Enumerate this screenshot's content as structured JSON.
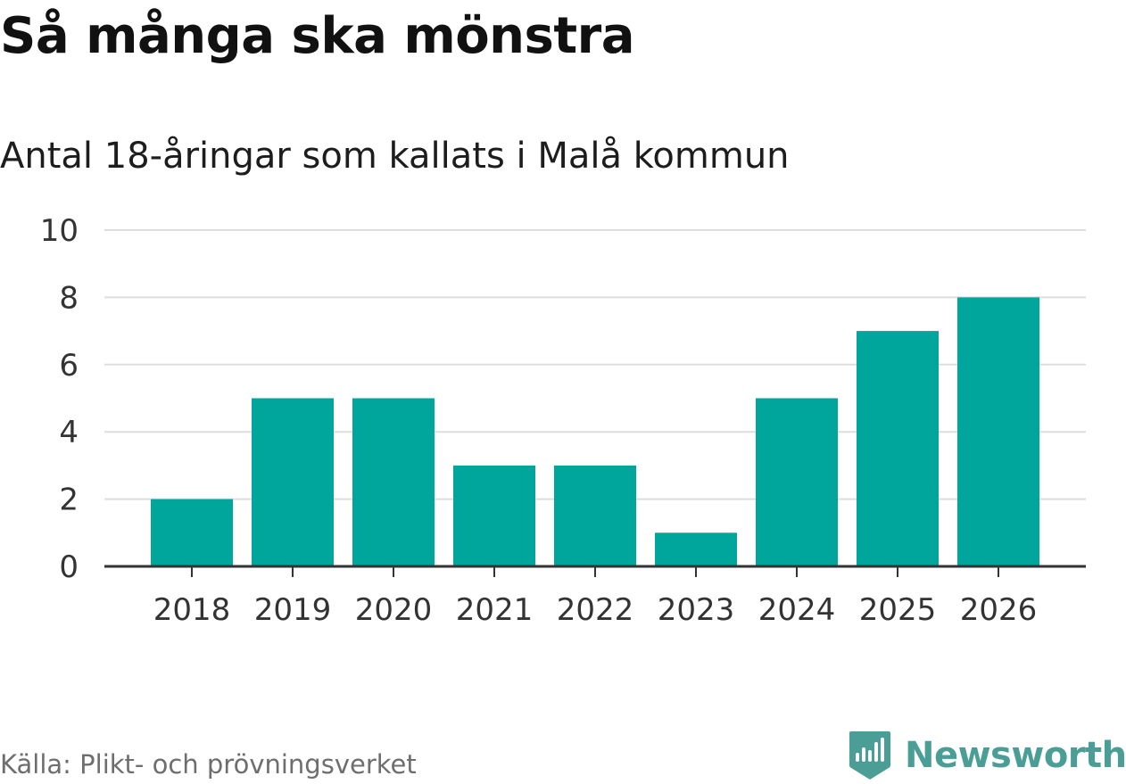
{
  "header": {
    "title": "Så många ska mönstra",
    "subtitle": "Antal 18-åringar som kallats i Malå kommun"
  },
  "chart_data": {
    "type": "bar",
    "categories": [
      "2018",
      "2019",
      "2020",
      "2021",
      "2022",
      "2023",
      "2024",
      "2025",
      "2026"
    ],
    "values": [
      2,
      5,
      5,
      3,
      3,
      1,
      5,
      7,
      8
    ],
    "title": "Så många ska mönstra",
    "subtitle": "Antal 18-åringar som kallats i Malå kommun",
    "ylim": [
      0,
      10
    ],
    "yticks": [
      "0",
      "2",
      "4",
      "6",
      "8",
      "10"
    ],
    "grid": true,
    "bar_color": "#00a59b"
  },
  "footer": {
    "source": "Källa: Plikt- och prövningsverket",
    "brand": "Newsworthy"
  },
  "colors": {
    "bar": "#00a59b",
    "brand": "#4a9e96",
    "gridline": "#dddddd",
    "axis": "#333333"
  }
}
